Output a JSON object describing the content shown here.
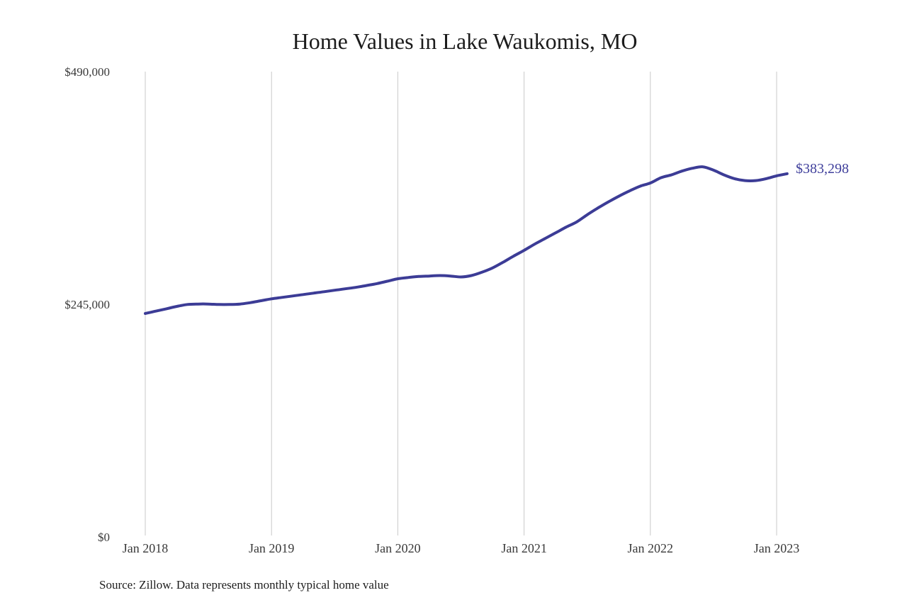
{
  "chart": {
    "title": "Home Values in Lake Waukomis, MO",
    "source": "Source: Zillow. Data represents monthly typical home value",
    "end_label": "$383,298",
    "y_ticks": [
      {
        "label": "$490,000",
        "value": 490000
      },
      {
        "label": "$245,000",
        "value": 245000
      },
      {
        "label": "$0",
        "value": 0
      }
    ],
    "x_ticks": [
      "Jan 2018",
      "Jan 2019",
      "Jan 2020",
      "Jan 2021",
      "Jan 2022",
      "Jan 2023"
    ],
    "colors": {
      "line": "#3c3c96",
      "grid": "#c9c9c9",
      "label": "#40409c"
    }
  },
  "chart_data": {
    "type": "line",
    "title": "Home Values in Lake Waukomis, MO",
    "xlabel": "",
    "ylabel": "",
    "ylim": [
      0,
      490000
    ],
    "grid": "vertical-only",
    "legend": "none",
    "series_name": "Typical home value (USD)",
    "final_value_annotation": "$383,298",
    "x": [
      "Jan 2018",
      "Feb 2018",
      "Mar 2018",
      "Apr 2018",
      "May 2018",
      "Jun 2018",
      "Jul 2018",
      "Aug 2018",
      "Sep 2018",
      "Oct 2018",
      "Nov 2018",
      "Dec 2018",
      "Jan 2019",
      "Feb 2019",
      "Mar 2019",
      "Apr 2019",
      "May 2019",
      "Jun 2019",
      "Jul 2019",
      "Aug 2019",
      "Sep 2019",
      "Oct 2019",
      "Nov 2019",
      "Dec 2019",
      "Jan 2020",
      "Feb 2020",
      "Mar 2020",
      "Apr 2020",
      "May 2020",
      "Jun 2020",
      "Jul 2020",
      "Aug 2020",
      "Sep 2020",
      "Oct 2020",
      "Nov 2020",
      "Dec 2020",
      "Jan 2021",
      "Feb 2021",
      "Mar 2021",
      "Apr 2021",
      "May 2021",
      "Jun 2021",
      "Jul 2021",
      "Aug 2021",
      "Sep 2021",
      "Oct 2021",
      "Nov 2021",
      "Dec 2021",
      "Jan 2022",
      "Feb 2022",
      "Mar 2022",
      "Apr 2022",
      "May 2022",
      "Jun 2022",
      "Jul 2022",
      "Aug 2022",
      "Sep 2022",
      "Oct 2022",
      "Nov 2022",
      "Dec 2022",
      "Jan 2023",
      "Feb 2023"
    ],
    "values": [
      236000,
      238500,
      241000,
      243500,
      245500,
      246000,
      246000,
      245500,
      245500,
      246000,
      247500,
      249500,
      251500,
      253000,
      254500,
      256000,
      257500,
      259000,
      260500,
      262000,
      263500,
      265500,
      267500,
      270000,
      272600,
      274000,
      275000,
      275500,
      276000,
      275500,
      274500,
      276000,
      279500,
      284000,
      290000,
      296500,
      302500,
      309000,
      315000,
      321000,
      327000,
      332500,
      340000,
      347000,
      353500,
      359500,
      365000,
      370000,
      373500,
      379000,
      382000,
      386000,
      389000,
      390500,
      387000,
      382000,
      378000,
      376000,
      376000,
      378000,
      381000,
      383298
    ]
  }
}
